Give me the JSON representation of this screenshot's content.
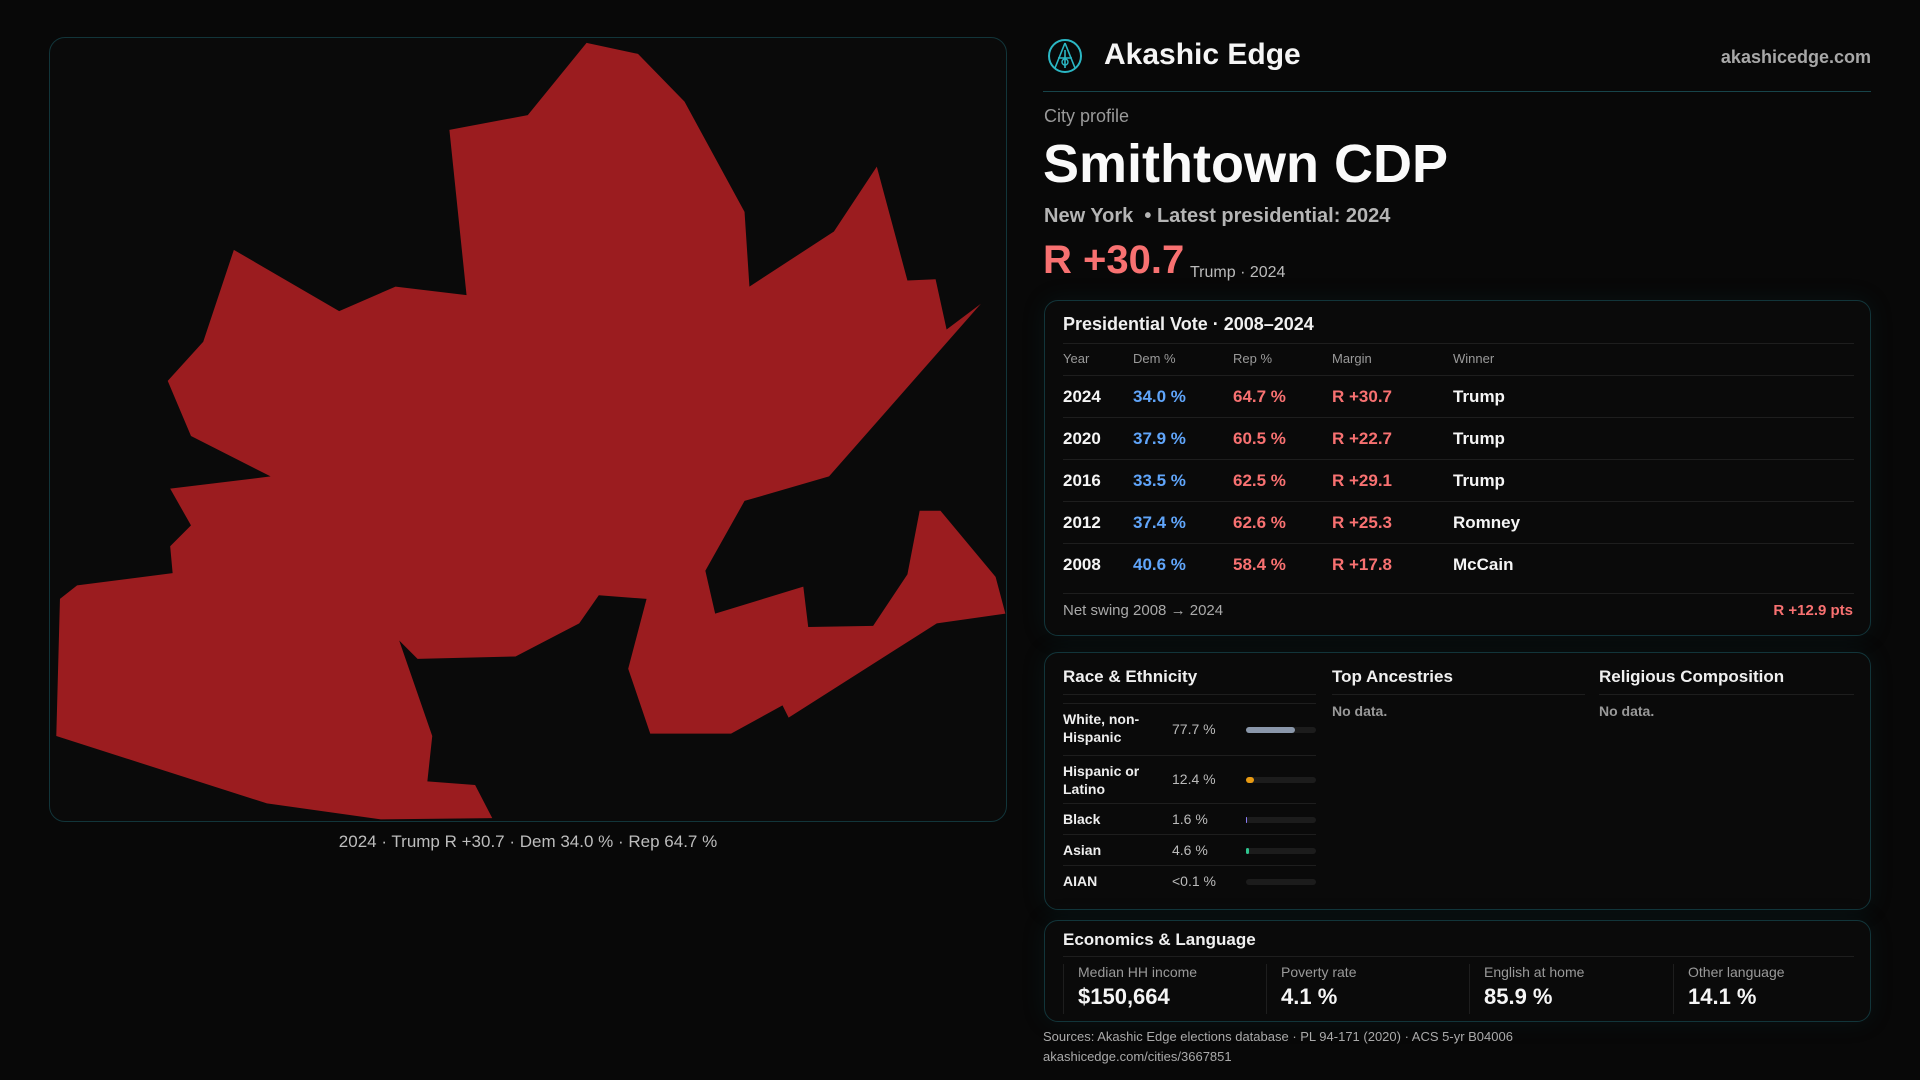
{
  "brand": {
    "name": "Akashic Edge",
    "url": "akashicedge.com"
  },
  "profile": {
    "kicker": "City profile",
    "title": "Smithtown CDP",
    "subtitle": "New York  • Latest presidential: 2024",
    "margin": "R +30.7",
    "margin_note": "Trump · 2024"
  },
  "map": {
    "caption": "2024 · Trump R +30.7 · Dem 34.0 % · Rep 64.7 %",
    "fill_color": "#9b1c1f"
  },
  "vote": {
    "title": "Presidential Vote · 2008–2024",
    "headers": [
      "Year",
      "Dem %",
      "Rep %",
      "Margin",
      "Winner"
    ],
    "rows": [
      [
        "2024",
        "34.0 %",
        "64.7 %",
        "R +30.7",
        "Trump"
      ],
      [
        "2020",
        "37.9 %",
        "60.5 %",
        "R +22.7",
        "Trump"
      ],
      [
        "2016",
        "33.5 %",
        "62.5 %",
        "R +29.1",
        "Trump"
      ],
      [
        "2012",
        "37.4 %",
        "62.6 %",
        "R +25.3",
        "Romney"
      ],
      [
        "2008",
        "40.6 %",
        "58.4 %",
        "R +17.8",
        "McCain"
      ]
    ],
    "swing_label": "Net swing 2008 → 2024",
    "swing_value": "R +12.9 pts"
  },
  "race": {
    "title": "Race & Ethnicity",
    "items": [
      {
        "label": "White, non-Hispanic",
        "value": "77.7 %",
        "pct": 77.7,
        "color": "#8a97aa"
      },
      {
        "label": "Hispanic or Latino",
        "value": "12.4 %",
        "pct": 12.4,
        "color": "#e89a12"
      },
      {
        "label": "Black",
        "value": "1.6 %",
        "pct": 1.6,
        "color": "#8b7cf6"
      },
      {
        "label": "Asian",
        "value": "4.6 %",
        "pct": 4.6,
        "color": "#2fc58f"
      },
      {
        "label": "AIAN",
        "value": "<0.1 %",
        "pct": 0,
        "color": "#888888"
      }
    ]
  },
  "ancestries": {
    "title": "Top Ancestries",
    "empty": "No data."
  },
  "religion": {
    "title": "Religious Composition",
    "empty": "No data."
  },
  "econ": {
    "title": "Economics & Language",
    "stats": [
      {
        "label": "Median HH income",
        "value": "$150,664"
      },
      {
        "label": "Poverty rate",
        "value": "4.1 %"
      },
      {
        "label": "English at home",
        "value": "85.9 %"
      },
      {
        "label": "Other language",
        "value": "14.1 %"
      }
    ]
  },
  "footer": {
    "sources": "Sources: Akashic Edge elections database · PL 94-171 (2020) · ACS 5-yr B04006",
    "link": "akashicedge.com/cities/3667851"
  }
}
